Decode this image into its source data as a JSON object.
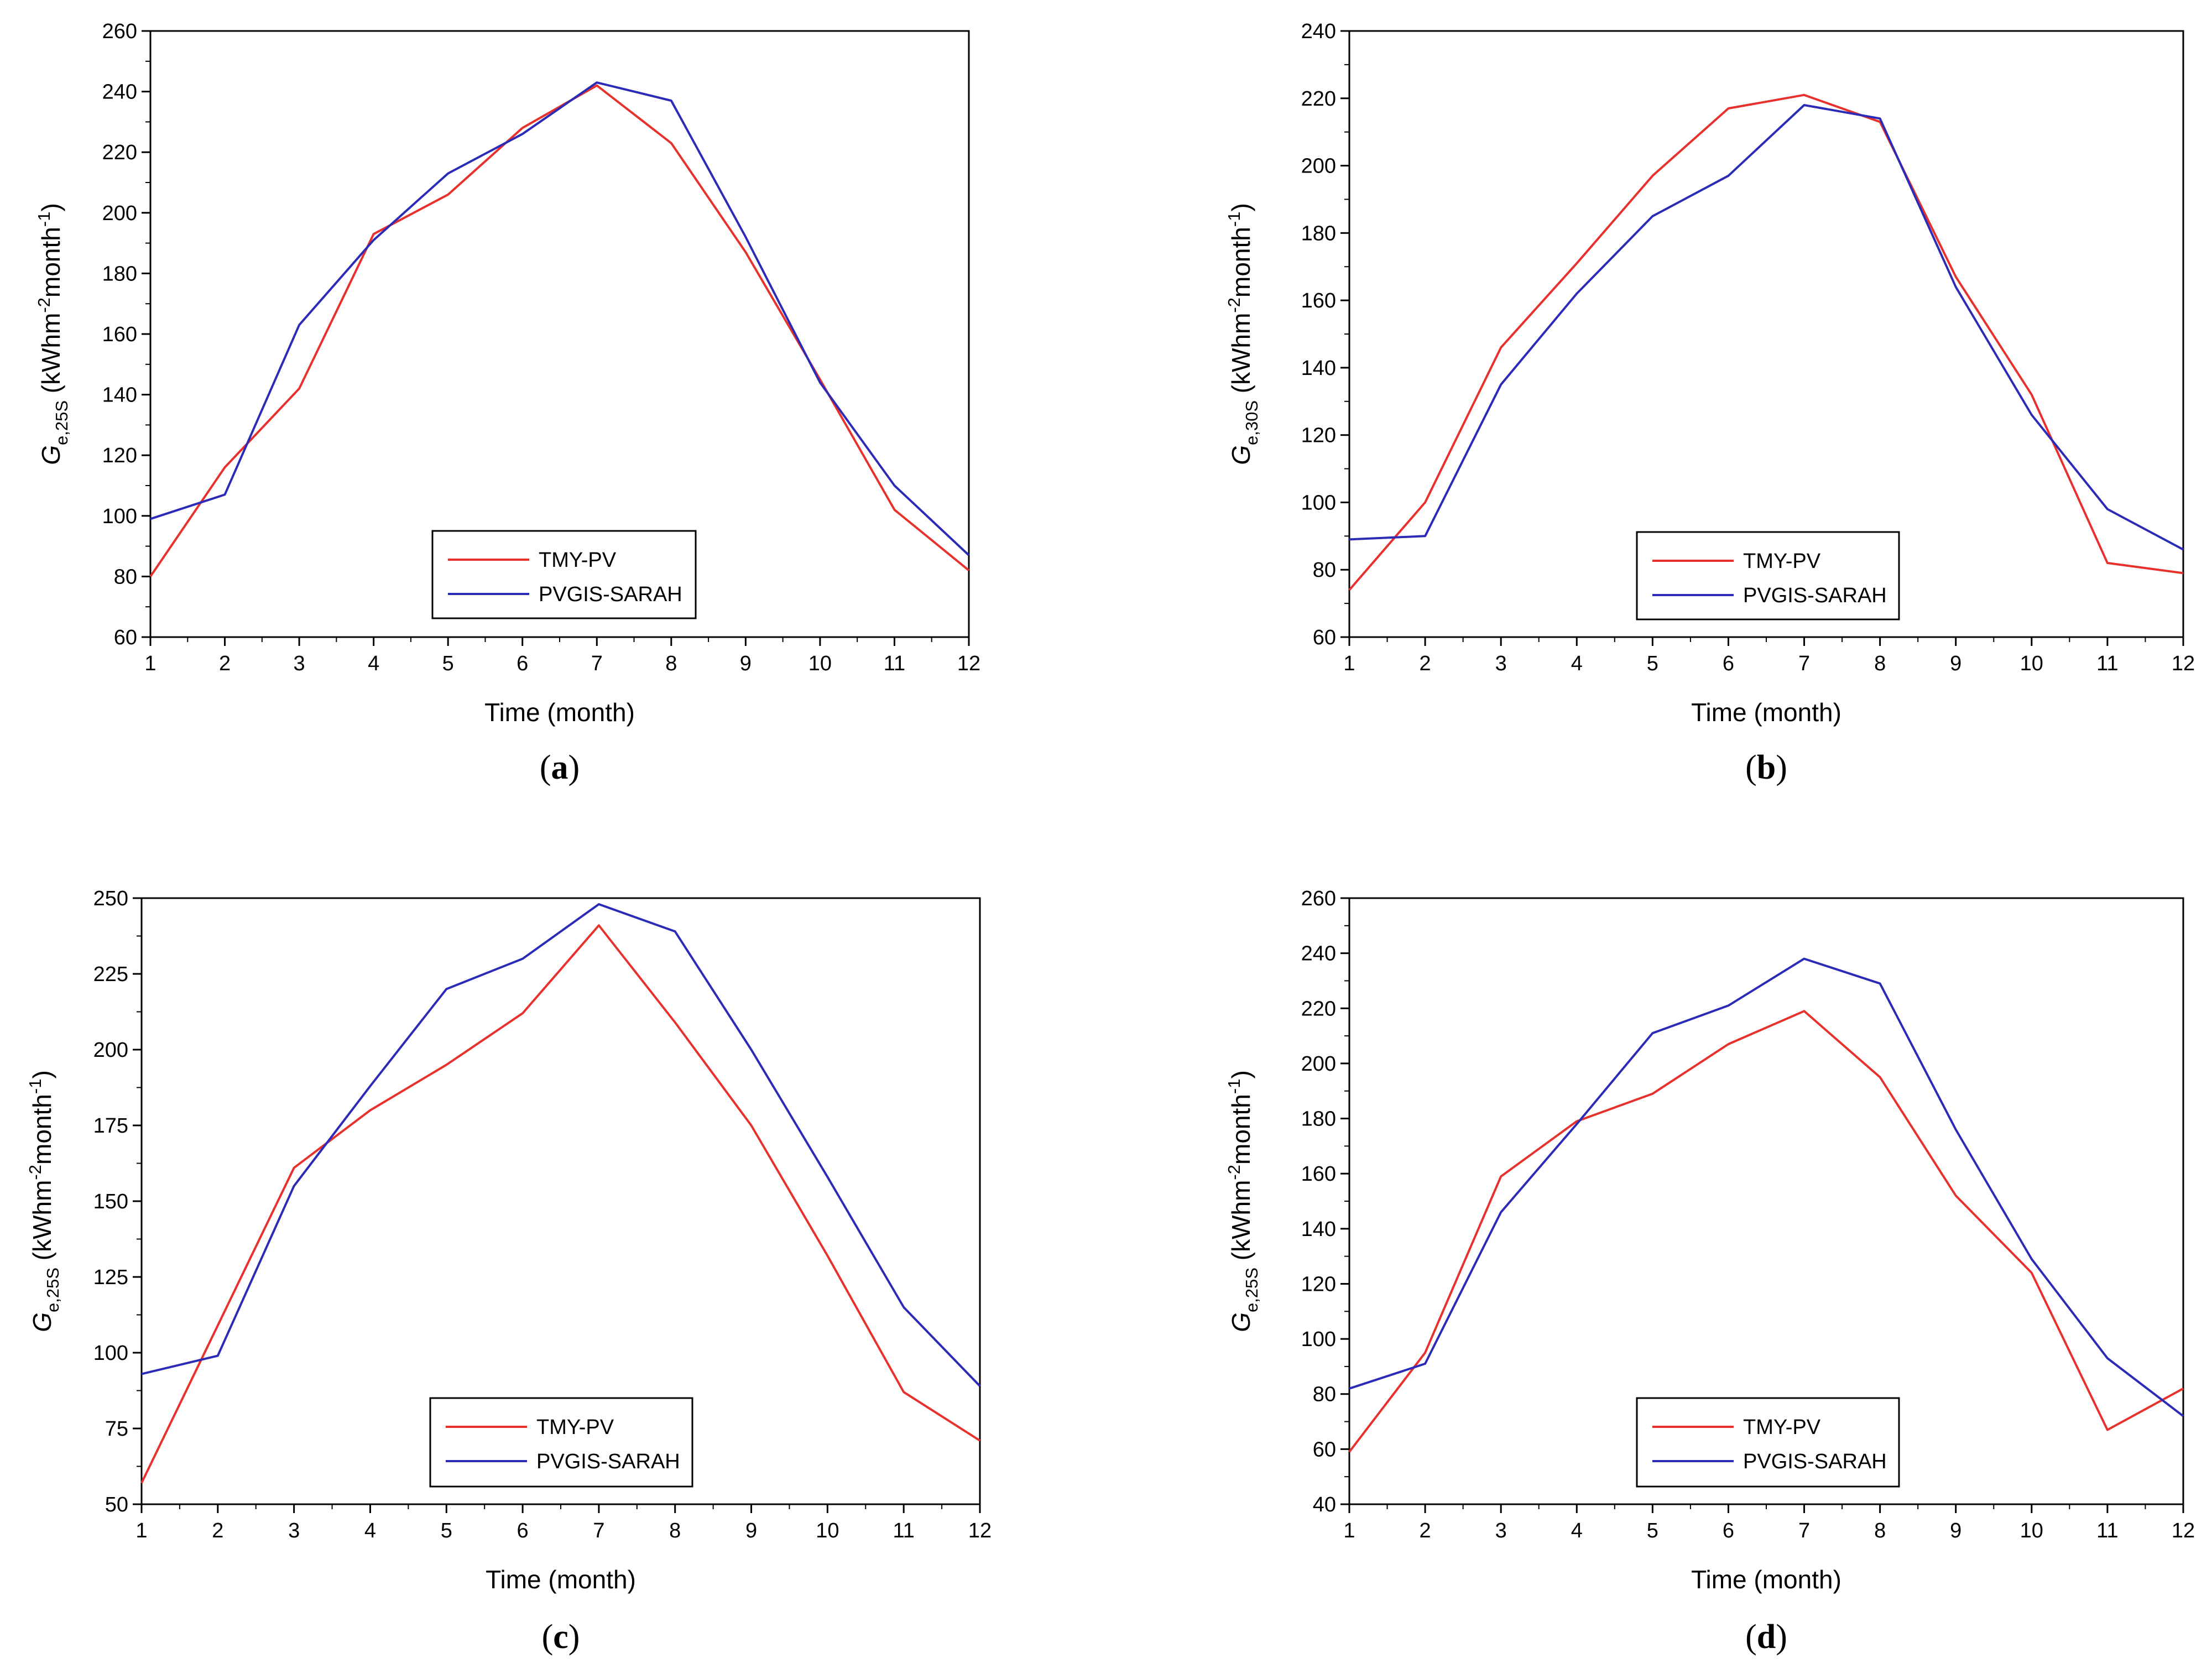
{
  "chart_data": [
    {
      "id": "a",
      "type": "line",
      "panel_label": "a",
      "xlabel": "Time (month)",
      "ylabel": {
        "symbol": "G",
        "subscript": "e,25S",
        "unit_open": " (kWhm",
        "unit_exp1": "-2",
        "unit_mid": "month",
        "unit_exp2": "-1",
        "unit_close": ")"
      },
      "xlim": [
        1,
        12
      ],
      "ylim": [
        60,
        260
      ],
      "xticks": [
        1,
        2,
        3,
        4,
        5,
        6,
        7,
        8,
        9,
        10,
        11,
        12
      ],
      "yticks": [
        60,
        80,
        100,
        120,
        140,
        160,
        180,
        200,
        220,
        240,
        260
      ],
      "legend_position": "bottom-center",
      "x": [
        1,
        2,
        3,
        4,
        5,
        6,
        7,
        8,
        9,
        10,
        11,
        12
      ],
      "series": [
        {
          "name": "TMY-PV",
          "color": "#e8302c",
          "values": [
            80,
            116,
            142,
            193,
            206,
            228,
            242,
            223,
            187,
            145,
            102,
            82
          ]
        },
        {
          "name": "PVGIS-SARAH",
          "color": "#2b2bb8",
          "values": [
            99,
            107,
            163,
            191,
            213,
            226,
            243,
            237,
            192,
            144,
            110,
            87
          ]
        }
      ]
    },
    {
      "id": "b",
      "type": "line",
      "panel_label": "b",
      "xlabel": "Time (month)",
      "ylabel": {
        "symbol": "G",
        "subscript": "e,30S",
        "unit_open": " (kWhm",
        "unit_exp1": "-2",
        "unit_mid": "month",
        "unit_exp2": "-1",
        "unit_close": ")"
      },
      "xlim": [
        1,
        12
      ],
      "ylim": [
        60,
        240
      ],
      "xticks": [
        1,
        2,
        3,
        4,
        5,
        6,
        7,
        8,
        9,
        10,
        11,
        12
      ],
      "yticks": [
        60,
        80,
        100,
        120,
        140,
        160,
        180,
        200,
        220,
        240
      ],
      "legend_position": "bottom-center",
      "x": [
        1,
        2,
        3,
        4,
        5,
        6,
        7,
        8,
        9,
        10,
        11,
        12
      ],
      "series": [
        {
          "name": "TMY-PV",
          "color": "#e8302c",
          "values": [
            74,
            100,
            146,
            171,
            197,
            217,
            221,
            213,
            167,
            132,
            82,
            79
          ]
        },
        {
          "name": "PVGIS-SARAH",
          "color": "#2b2bb8",
          "values": [
            89,
            90,
            135,
            162,
            185,
            197,
            218,
            214,
            164,
            126,
            98,
            86
          ]
        }
      ]
    },
    {
      "id": "c",
      "type": "line",
      "panel_label": "c",
      "xlabel": "Time (month)",
      "ylabel": {
        "symbol": "G",
        "subscript": "e,25S",
        "unit_open": " (kWhm",
        "unit_exp1": "-2",
        "unit_mid": "month",
        "unit_exp2": "-1",
        "unit_close": ")"
      },
      "xlim": [
        1,
        12
      ],
      "ylim": [
        50,
        250
      ],
      "xticks": [
        1,
        2,
        3,
        4,
        5,
        6,
        7,
        8,
        9,
        10,
        11,
        12
      ],
      "yticks": [
        50,
        75,
        100,
        125,
        150,
        175,
        200,
        225,
        250
      ],
      "legend_position": "bottom-center",
      "x": [
        1,
        2,
        3,
        4,
        5,
        6,
        7,
        8,
        9,
        10,
        11,
        12
      ],
      "series": [
        {
          "name": "TMY-PV",
          "color": "#e8302c",
          "values": [
            57,
            109,
            161,
            180,
            195,
            212,
            241,
            209,
            175,
            132,
            87,
            71
          ]
        },
        {
          "name": "PVGIS-SARAH",
          "color": "#2b2bb8",
          "values": [
            93,
            99,
            155,
            188,
            220,
            230,
            248,
            239,
            200,
            158,
            115,
            89
          ]
        }
      ]
    },
    {
      "id": "d",
      "type": "line",
      "panel_label": "d",
      "xlabel": "Time (month)",
      "ylabel": {
        "symbol": "G",
        "subscript": "e,25S",
        "unit_open": " (kWhm",
        "unit_exp1": "-2",
        "unit_mid": "month",
        "unit_exp2": "-1",
        "unit_close": ")"
      },
      "xlim": [
        1,
        12
      ],
      "ylim": [
        40,
        260
      ],
      "xticks": [
        1,
        2,
        3,
        4,
        5,
        6,
        7,
        8,
        9,
        10,
        11,
        12
      ],
      "yticks": [
        40,
        60,
        80,
        100,
        120,
        140,
        160,
        180,
        200,
        220,
        240,
        260
      ],
      "legend_position": "bottom-center",
      "x": [
        1,
        2,
        3,
        4,
        5,
        6,
        7,
        8,
        9,
        10,
        11,
        12
      ],
      "series": [
        {
          "name": "TMY-PV",
          "color": "#e8302c",
          "values": [
            59,
            95,
            159,
            179,
            189,
            207,
            219,
            195,
            152,
            124,
            67,
            82
          ]
        },
        {
          "name": "PVGIS-SARAH",
          "color": "#2b2bb8",
          "values": [
            82,
            91,
            146,
            178,
            211,
            221,
            238,
            229,
            176,
            129,
            93,
            72
          ]
        }
      ]
    }
  ]
}
